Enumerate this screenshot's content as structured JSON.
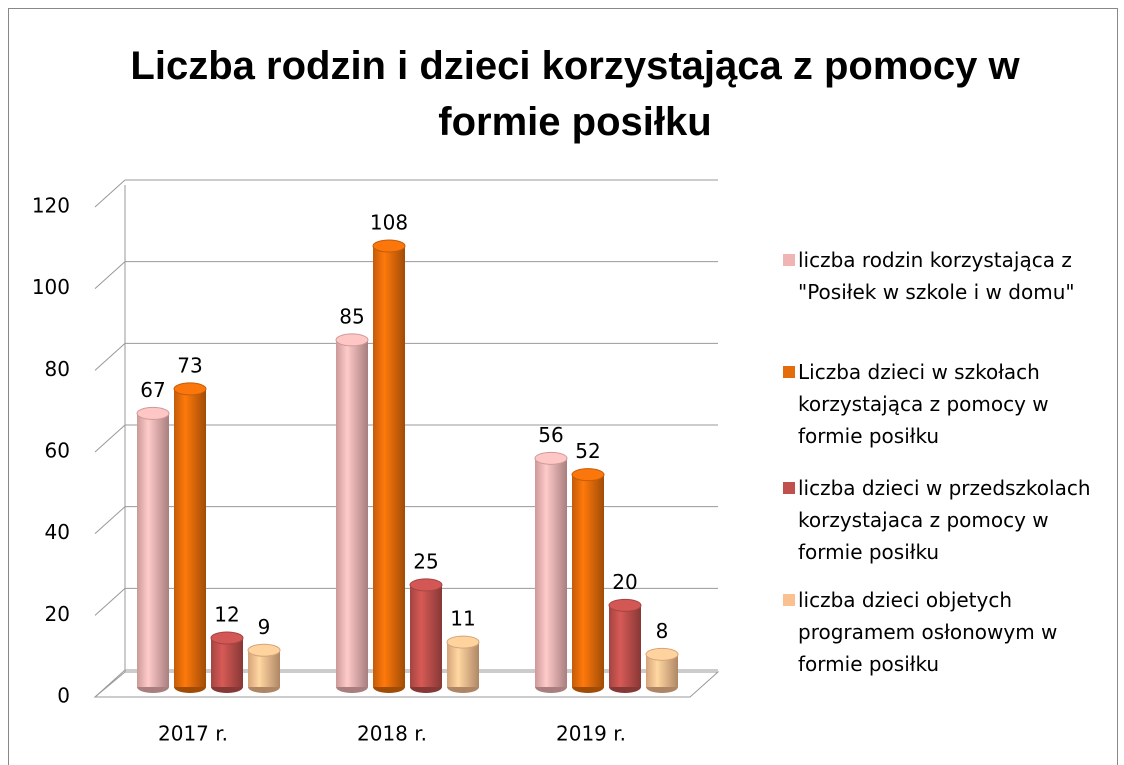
{
  "chart_data": {
    "type": "bar3d",
    "title": "Liczba rodzin i dzieci korzystająca z pomocy w formie posiłku",
    "categories": [
      "2017 r.",
      "2018 r.",
      "2019 r."
    ],
    "series": [
      {
        "name": "liczba rodzin korzystająca z \"Posiłek w szkole i w domu\"",
        "color": "#f0b4b4",
        "values": [
          67,
          85,
          56
        ]
      },
      {
        "name": "Liczba dzieci w szkołach korzystająca z pomocy w formie posiłku",
        "color": "#e46c0a",
        "values": [
          73,
          108,
          52
        ]
      },
      {
        "name": "liczba dzieci w przedszkolach korzystajaca z pomocy w formie posiłku",
        "color": "#c0504d",
        "values": [
          12,
          25,
          20
        ]
      },
      {
        "name": "liczba dzieci objetych programem osłonowym w formie posiłku",
        "color": "#fac090",
        "values": [
          9,
          11,
          8
        ]
      }
    ],
    "ylim": [
      0,
      120
    ],
    "yticks": [
      0,
      20,
      40,
      60,
      80,
      100,
      120
    ],
    "grid": true,
    "legend": "right"
  }
}
